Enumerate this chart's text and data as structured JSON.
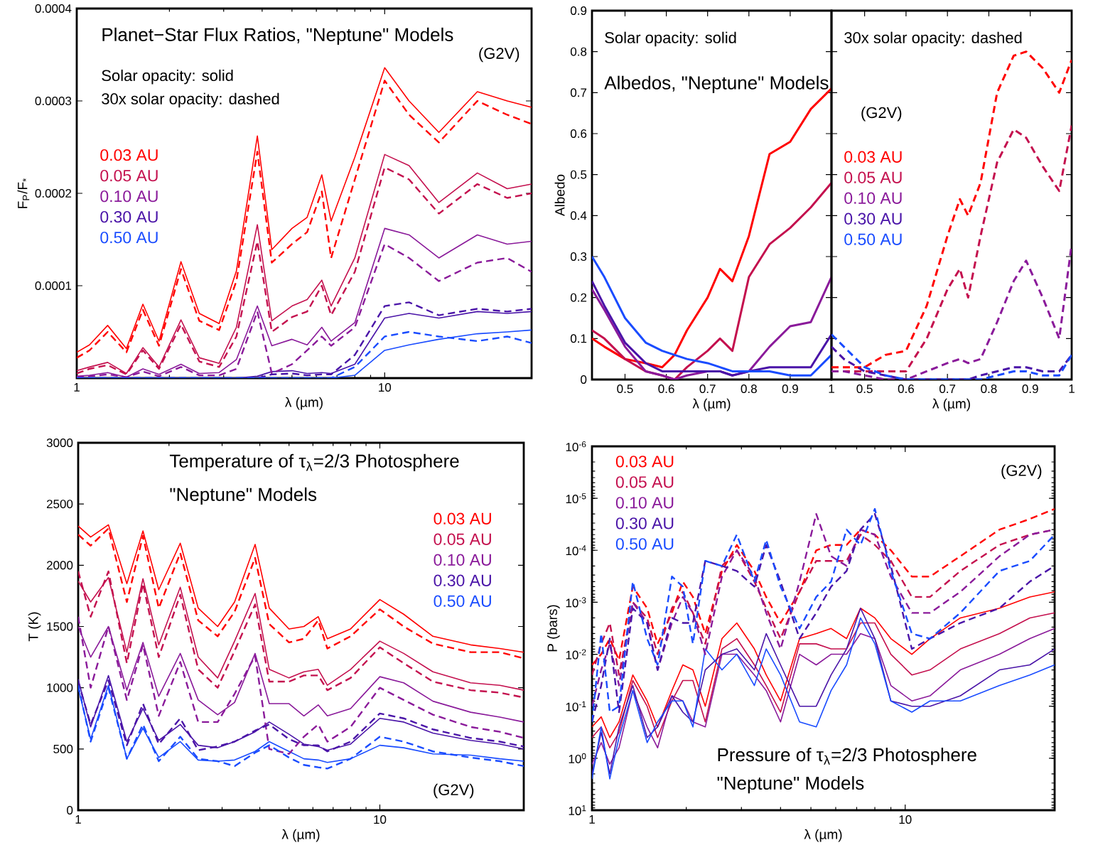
{
  "chart_data": [
    {
      "type": "line",
      "title": "Planet−Star Flux Ratios, \"Neptune\" Models",
      "xlabel": "λ (µm)",
      "ylabel": "F$_{P}$/F$_{*}$",
      "log": "x",
      "legend": "left",
      "annotations": [
        "Solar opacity: solid",
        "30x solar opacity: dashed",
        "(G2V)"
      ],
      "xlim": [
        1,
        30
      ],
      "xticks": [
        1,
        10
      ],
      "ylim": [
        0,
        0.0004
      ],
      "yticks": [
        {
          "value": 0,
          "label": null
        },
        0.0001,
        0.0002,
        0.0003,
        0.0004
      ],
      "x": [
        1,
        1.1,
        1.26,
        1.45,
        1.64,
        1.85,
        2.18,
        2.5,
        2.9,
        3.3,
        3.86,
        4.3,
        5,
        5.6,
        6.25,
        6.7,
        8,
        10,
        12,
        15,
        20,
        25,
        30
      ],
      "series": [
        {
          "name": "0.03 AU",
          "color": "#ff0000",
          "line_style": "solid",
          "values": [
            2.8e-05,
            3.6e-05,
            5.7e-05,
            3.2e-05,
            8e-05,
            4e-05,
            0.000126,
            7e-05,
            5.9e-05,
            0.000116,
            0.000262,
            0.000139,
            0.000162,
            0.000174,
            0.00022,
            0.00017,
            0.000239,
            0.000336,
            0.0003,
            0.000266,
            0.00031,
            0.0003,
            0.000293
          ]
        },
        {
          "name": "0.05 AU",
          "color": "#c4104e",
          "line_style": "solid",
          "values": [
            8e-06,
            1.2e-05,
            1.7e-05,
            5e-06,
            3.3e-05,
            1.2e-05,
            6.3e-05,
            2.2e-05,
            1.6e-05,
            5.5e-05,
            0.000166,
            6.2e-05,
            7.8e-05,
            8.5e-05,
            0.000106,
            7.8e-05,
            0.00013,
            0.000242,
            0.00023,
            0.00019,
            0.000222,
            0.000205,
            0.00021
          ]
        },
        {
          "name": "0.10 AU",
          "color": "#8a1a9a",
          "line_style": "solid",
          "values": [
            2e-06,
            3e-06,
            6e-06,
            1e-06,
            1e-05,
            4e-06,
            1.5e-05,
            5e-06,
            6e-06,
            2e-05,
            7.8e-05,
            3.5e-05,
            4.2e-05,
            3.6e-05,
            5.5e-05,
            4e-05,
            6e-05,
            0.000162,
            0.000155,
            0.00013,
            0.000155,
            0.000145,
            0.000148
          ]
        },
        {
          "name": "0.30 AU",
          "color": "#4a14a8",
          "line_style": "solid",
          "values": [
            0,
            0,
            0,
            0,
            0,
            0,
            0,
            0,
            0,
            0,
            2e-06,
            7e-06,
            8e-06,
            5e-06,
            6e-06,
            5e-06,
            1.5e-05,
            6.5e-05,
            7e-05,
            6.5e-05,
            7.2e-05,
            7e-05,
            7.2e-05
          ]
        },
        {
          "name": "0.50 AU",
          "color": "#1a4cff",
          "line_style": "solid",
          "values": [
            0,
            0,
            0,
            0,
            0,
            0,
            0,
            0,
            0,
            0,
            0,
            0,
            0,
            0,
            0,
            0,
            3e-06,
            3e-05,
            3.6e-05,
            4.2e-05,
            4.8e-05,
            5e-05,
            5.2e-05
          ]
        },
        {
          "color": "#ff0000",
          "line_style": "dashed",
          "values": [
            2.2e-05,
            3e-05,
            5e-05,
            2.8e-05,
            7.4e-05,
            3.5e-05,
            0.000118,
            6.2e-05,
            5.2e-05,
            0.000105,
            0.000245,
            0.000125,
            0.000145,
            0.000158,
            0.000202,
            0.00013,
            0.000215,
            0.000322,
            0.000285,
            0.000255,
            0.0003,
            0.000285,
            0.000275
          ]
        },
        {
          "color": "#c4104e",
          "line_style": "dashed",
          "values": [
            5e-06,
            1e-05,
            1.4e-05,
            4e-06,
            3e-05,
            1e-05,
            5.8e-05,
            1.8e-05,
            1.2e-05,
            4.5e-05,
            0.000148,
            5e-05,
            6.6e-05,
            7.2e-05,
            0.0001,
            6.8e-05,
            0.000115,
            0.000228,
            0.000215,
            0.000178,
            0.00021,
            0.000195,
            0.0002
          ]
        },
        {
          "color": "#8a1a9a",
          "line_style": "dashed",
          "values": [
            1e-06,
            2e-06,
            4e-06,
            1e-06,
            7e-06,
            2e-06,
            1.2e-05,
            3e-06,
            3e-06,
            1e-05,
            7.2e-05,
            5e-06,
            1.5e-05,
            3e-05,
            4.5e-05,
            3.5e-05,
            5.5e-05,
            0.000145,
            0.00013,
            0.000105,
            0.000125,
            0.00013,
            0.000115
          ]
        },
        {
          "color": "#4a14a8",
          "line_style": "dashed",
          "values": [
            0,
            0,
            0,
            0,
            0,
            0,
            0,
            0,
            0,
            0,
            0,
            4e-06,
            5e-06,
            3e-06,
            4e-06,
            4e-06,
            2.5e-05,
            7.8e-05,
            8.2e-05,
            6.8e-05,
            7.5e-05,
            7.2e-05,
            7.5e-05
          ]
        },
        {
          "color": "#1a4cff",
          "line_style": "dashed",
          "values": [
            0,
            0,
            0,
            0,
            0,
            0,
            0,
            0,
            0,
            0,
            0,
            0,
            0,
            0,
            0,
            0,
            1.2e-05,
            4.5e-05,
            5e-05,
            4.5e-05,
            4e-05,
            4.5e-05,
            3.8e-05
          ]
        }
      ]
    },
    {
      "type": "line",
      "title": "Albedos, \"Neptune\" Models",
      "xlabel": "λ (µm)",
      "ylabel": "Albedo",
      "annotations": [
        "Solar opacity: solid"
      ],
      "xlim": [
        0.42,
        1.0
      ],
      "xticks": [
        0.5,
        0.6,
        0.7,
        0.8,
        0.9,
        1
      ],
      "ylim": [
        0,
        0.9
      ],
      "yticks": [
        0,
        0.1,
        0.2,
        0.3,
        0.4,
        0.5,
        0.6,
        0.7,
        0.8,
        0.9
      ],
      "x": [
        0.42,
        0.45,
        0.5,
        0.55,
        0.59,
        0.62,
        0.65,
        0.7,
        0.73,
        0.76,
        0.8,
        0.85,
        0.9,
        0.95,
        1.0
      ],
      "series": [
        {
          "color": "#ff0000",
          "line_style": "solid",
          "values": [
            0.1,
            0.08,
            0.05,
            0.04,
            0.03,
            0.06,
            0.12,
            0.2,
            0.27,
            0.24,
            0.35,
            0.55,
            0.58,
            0.66,
            0.71
          ]
        },
        {
          "color": "#c4104e",
          "line_style": "solid",
          "values": [
            0.12,
            0.1,
            0.05,
            0.02,
            0.01,
            0.0,
            0.03,
            0.07,
            0.1,
            0.07,
            0.25,
            0.33,
            0.37,
            0.42,
            0.48
          ]
        },
        {
          "color": "#8a1a9a",
          "line_style": "solid",
          "values": [
            0.22,
            0.17,
            0.08,
            0.02,
            0.01,
            0.0,
            0.01,
            0.02,
            0.02,
            0.01,
            0.02,
            0.08,
            0.13,
            0.14,
            0.25
          ]
        },
        {
          "color": "#4a14a8",
          "line_style": "solid",
          "values": [
            0.24,
            0.18,
            0.09,
            0.04,
            0.02,
            0.02,
            0.02,
            0.02,
            0.02,
            0.01,
            0.02,
            0.03,
            0.03,
            0.03,
            0.11
          ]
        },
        {
          "color": "#1a4cff",
          "line_style": "solid",
          "values": [
            0.3,
            0.25,
            0.15,
            0.09,
            0.07,
            0.06,
            0.05,
            0.04,
            0.03,
            0.02,
            0.02,
            0.02,
            0.01,
            0.01,
            0.06
          ]
        }
      ]
    },
    {
      "type": "line",
      "xlabel": "λ (µm)",
      "legend": "left",
      "tick_labels": "x",
      "annotations": [
        "30x solar opacity: dashed",
        "(G2V)"
      ],
      "xlim": [
        0.42,
        1.0
      ],
      "xticks": [
        0.5,
        0.6,
        0.7,
        0.8,
        0.9,
        1
      ],
      "ylim": [
        0,
        0.9
      ],
      "yticks": [
        0,
        0.1,
        0.2,
        0.3,
        0.4,
        0.5,
        0.6,
        0.7,
        0.8,
        0.9
      ],
      "x": [
        0.42,
        0.45,
        0.5,
        0.55,
        0.6,
        0.65,
        0.7,
        0.73,
        0.75,
        0.78,
        0.82,
        0.86,
        0.89,
        0.93,
        0.97,
        1.0
      ],
      "series": [
        {
          "name": "0.03 AU",
          "color": "#ff0000",
          "line_style": "dashed",
          "values": [
            0.03,
            0.03,
            0.03,
            0.06,
            0.07,
            0.18,
            0.35,
            0.44,
            0.4,
            0.48,
            0.7,
            0.79,
            0.8,
            0.76,
            0.7,
            0.78
          ]
        },
        {
          "name": "0.05 AU",
          "color": "#c4104e",
          "line_style": "dashed",
          "values": [
            0.02,
            0.02,
            0.02,
            0.02,
            0.02,
            0.1,
            0.22,
            0.27,
            0.2,
            0.35,
            0.53,
            0.61,
            0.59,
            0.52,
            0.46,
            0.62
          ]
        },
        {
          "name": "0.10 AU",
          "color": "#8a1a9a",
          "line_style": "dashed",
          "values": [
            0.02,
            0.02,
            0.01,
            0.0,
            0.0,
            0.02,
            0.04,
            0.05,
            0.04,
            0.05,
            0.14,
            0.24,
            0.29,
            0.2,
            0.1,
            0.33
          ]
        },
        {
          "name": "0.30 AU",
          "color": "#4a14a8",
          "line_style": "dashed",
          "values": [
            0.08,
            0.05,
            0.02,
            0.01,
            0.0,
            0.0,
            0.0,
            0.0,
            0.0,
            0.01,
            0.02,
            0.03,
            0.03,
            0.02,
            0.02,
            0.06
          ]
        },
        {
          "name": "0.50 AU",
          "color": "#1a4cff",
          "line_style": "dashed",
          "values": [
            0.11,
            0.08,
            0.03,
            0.01,
            0.0,
            0.0,
            0.0,
            0.0,
            0.0,
            0.0,
            0.01,
            0.02,
            0.02,
            0.01,
            0.01,
            0.06
          ]
        }
      ]
    },
    {
      "type": "line",
      "title": "Temperature of τ$_{λ}$=2/3 Photosphere",
      "subtitle": "\"Neptune\" Models",
      "xlabel": "λ (µm)",
      "ylabel": "T (K)",
      "log": "x",
      "legend": "top right",
      "annotations": [
        "(G2V)"
      ],
      "xlim": [
        1,
        30
      ],
      "xticks": [
        1,
        10
      ],
      "ylim": [
        0,
        3000
      ],
      "yticks": [
        0,
        500,
        1000,
        1500,
        2000,
        2500,
        3000
      ],
      "x": [
        1,
        1.1,
        1.26,
        1.45,
        1.64,
        1.85,
        2.18,
        2.5,
        2.9,
        3.3,
        3.86,
        4.3,
        5,
        5.6,
        6.25,
        6.7,
        8,
        10,
        12,
        15,
        20,
        25,
        30
      ],
      "series": [
        {
          "name": "0.03 AU",
          "color": "#ff0000",
          "line_style": "solid",
          "values": [
            2320,
            2230,
            2330,
            1850,
            2280,
            1800,
            2180,
            1650,
            1500,
            1700,
            2170,
            1650,
            1480,
            1500,
            1580,
            1400,
            1480,
            1720,
            1600,
            1420,
            1350,
            1320,
            1290
          ]
        },
        {
          "name": "0.05 AU",
          "color": "#c4104e",
          "line_style": "solid",
          "values": [
            1870,
            1700,
            1900,
            1290,
            1890,
            1350,
            1820,
            1250,
            1080,
            1380,
            1770,
            1150,
            1080,
            1130,
            1150,
            1020,
            1150,
            1380,
            1280,
            1130,
            1040,
            1020,
            980
          ]
        },
        {
          "name": "0.10 AU",
          "color": "#8a1a9a",
          "line_style": "solid",
          "values": [
            1500,
            1250,
            1500,
            980,
            1370,
            930,
            1280,
            900,
            780,
            880,
            1280,
            870,
            870,
            770,
            860,
            770,
            830,
            1090,
            1040,
            890,
            800,
            760,
            720
          ]
        },
        {
          "name": "0.30 AU",
          "color": "#4a14a8",
          "line_style": "solid",
          "values": [
            1070,
            680,
            1100,
            560,
            830,
            570,
            700,
            530,
            510,
            560,
            640,
            720,
            620,
            540,
            520,
            490,
            540,
            750,
            720,
            630,
            570,
            540,
            500
          ]
        },
        {
          "name": "0.50 AU",
          "color": "#1a4cff",
          "line_style": "solid",
          "values": [
            1000,
            580,
            1020,
            420,
            670,
            430,
            560,
            410,
            400,
            410,
            480,
            560,
            480,
            420,
            410,
            390,
            420,
            530,
            510,
            460,
            450,
            420,
            400
          ]
        },
        {
          "color": "#ff0000",
          "line_style": "dashed",
          "values": [
            2250,
            2160,
            2300,
            1700,
            2240,
            1650,
            2100,
            1550,
            1420,
            1620,
            2060,
            1520,
            1370,
            1400,
            1550,
            1320,
            1420,
            1640,
            1500,
            1360,
            1290,
            1290,
            1240
          ]
        },
        {
          "color": "#c4104e",
          "line_style": "dashed",
          "values": [
            1950,
            1580,
            1950,
            1200,
            1850,
            1250,
            1760,
            1150,
            1000,
            1300,
            1680,
            1050,
            1050,
            1100,
            1100,
            980,
            1080,
            1330,
            1200,
            1050,
            980,
            960,
            920
          ]
        },
        {
          "color": "#8a1a9a",
          "line_style": "dashed",
          "values": [
            1580,
            1000,
            1500,
            900,
            1350,
            770,
            1210,
            720,
            720,
            950,
            1260,
            500,
            460,
            600,
            700,
            560,
            680,
            1000,
            900,
            780,
            680,
            640,
            590
          ]
        },
        {
          "color": "#4a14a8",
          "line_style": "dashed",
          "values": [
            1050,
            700,
            1060,
            530,
            870,
            540,
            750,
            490,
            520,
            560,
            650,
            700,
            580,
            530,
            530,
            480,
            560,
            790,
            750,
            660,
            590,
            560,
            520
          ]
        },
        {
          "color": "#1a4cff",
          "line_style": "dashed",
          "values": [
            1020,
            560,
            1000,
            420,
            700,
            400,
            600,
            420,
            400,
            360,
            470,
            530,
            430,
            370,
            350,
            340,
            420,
            600,
            560,
            480,
            430,
            400,
            360
          ]
        }
      ]
    },
    {
      "type": "line",
      "title": "Pressure of τ$_{λ}$=2/3 Photosphere",
      "subtitle": "\"Neptune\" Models",
      "xlabel": "λ (µm)",
      "ylabel": "P (bars)",
      "log": "xy",
      "legend": "top left",
      "annotations": [
        "(G2V)"
      ],
      "xlim": [
        1,
        30
      ],
      "xticks": [
        1,
        10
      ],
      "ylim": [
        10,
        1e-06
      ],
      "yticks": [
        {
          "value": 1e-06,
          "label": "10$^{-6}$"
        },
        {
          "value": 1e-05,
          "label": "10$^{-5}$"
        },
        {
          "value": 0.0001,
          "label": "10$^{-4}$"
        },
        {
          "value": 0.001,
          "label": "10$^{-3}$"
        },
        {
          "value": 0.01,
          "label": "10$^{-2}$"
        },
        {
          "value": 0.1,
          "label": "10$^{-1}$"
        },
        {
          "value": 1,
          "label": "10$^{0}$"
        },
        {
          "value": 10,
          "label": "10$^{1}$"
        }
      ],
      "x": [
        1,
        1.07,
        1.14,
        1.22,
        1.35,
        1.5,
        1.62,
        1.8,
        1.95,
        2.1,
        2.3,
        2.6,
        2.9,
        3.3,
        3.6,
        4.0,
        4.6,
        5.2,
        5.8,
        6.5,
        7.2,
        8,
        9,
        10.5,
        12,
        15,
        20,
        25,
        30
      ],
      "series": [
        {
          "name": "0.03 AU",
          "color": "#ff0000",
          "line_style": "solid",
          "values": [
            0.25,
            0.16,
            0.4,
            0.2,
            0.025,
            0.079,
            0.25,
            0.05,
            0.016,
            0.02,
            0.1,
            0.005,
            0.0025,
            0.0079,
            0.025,
            0.079,
            0.005,
            0.004,
            0.0032,
            0.005,
            0.0013,
            0.002,
            0.005,
            0.01,
            0.005,
            0.002,
            0.0013,
            0.00079,
            0.00063
          ]
        },
        {
          "name": "0.05 AU",
          "color": "#c4104e",
          "line_style": "solid",
          "values": [
            0.4,
            0.25,
            0.63,
            0.32,
            0.032,
            0.1,
            0.4,
            0.079,
            0.032,
            0.032,
            0.2,
            0.0079,
            0.005,
            0.016,
            0.04,
            0.13,
            0.0063,
            0.0063,
            0.0079,
            0.0079,
            0.0025,
            0.0025,
            0.01,
            0.025,
            0.02,
            0.0079,
            0.004,
            0.002,
            0.0016
          ]
        },
        {
          "name": "0.10 AU",
          "color": "#8a1a9a",
          "line_style": "solid",
          "values": [
            1.3,
            0.5,
            1.3,
            0.63,
            0.05,
            0.25,
            0.63,
            0.063,
            0.079,
            0.2,
            0.25,
            0.01,
            0.01,
            0.025,
            0.05,
            0.2,
            0.01,
            0.016,
            0.01,
            0.01,
            0.004,
            0.005,
            0.04,
            0.079,
            0.063,
            0.02,
            0.01,
            0.005,
            0.0032
          ]
        },
        {
          "name": "0.30 AU",
          "color": "#4a14a8",
          "line_style": "solid",
          "values": [
            2,
            0.32,
            2,
            0.25,
            0.04,
            0.4,
            0.25,
            0.063,
            0.13,
            0.2,
            0.02,
            0.01,
            0.0079,
            0.02,
            0.004,
            0.016,
            0.1,
            0.1,
            0.025,
            0.0079,
            0.0013,
            0.005,
            0.079,
            0.1,
            0.1,
            0.063,
            0.02,
            0.016,
            0.0079
          ]
        },
        {
          "name": "0.50 AU",
          "color": "#1a4cff",
          "line_style": "solid",
          "values": [
            2.5,
            0.25,
            2.5,
            0.4,
            0.05,
            0.5,
            0.2,
            0.079,
            0.079,
            0.25,
            0.0079,
            0.02,
            0.01,
            0.04,
            0.0079,
            0.025,
            0.2,
            0.25,
            0.05,
            0.016,
            0.002,
            0.0063,
            0.079,
            0.13,
            0.079,
            0.079,
            0.04,
            0.025,
            0.016
          ]
        },
        {
          "color": "#ff0000",
          "line_style": "dashed",
          "values": [
            0.016,
            0.01,
            0.005,
            0.013,
            0.0005,
            0.0013,
            0.0063,
            0.0016,
            0.0004,
            0.00079,
            0.004,
            0.00025,
            7.9e-05,
            0.00025,
            0.00079,
            0.0025,
            0.00063,
            0.0001,
            7.9e-05,
            7.9e-05,
            4e-05,
            5e-05,
            0.0001,
            0.00032,
            0.00032,
            0.00013,
            4e-05,
            2.5e-05,
            1.6e-05
          ]
        },
        {
          "color": "#c4104e",
          "line_style": "dashed",
          "values": [
            0.025,
            0.0063,
            0.0025,
            0.025,
            0.001,
            0.002,
            0.01,
            0.0013,
            0.00063,
            0.0016,
            0.0063,
            0.0002,
            0.0001,
            0.0004,
            0.0013,
            0.005,
            0.00063,
            0.00016,
            0.00016,
            0.00016,
            5e-05,
            7.9e-05,
            0.00016,
            0.00079,
            0.00079,
            0.00025,
            7.9e-05,
            5e-05,
            4e-05
          ]
        },
        {
          "color": "#8a1a9a",
          "line_style": "dashed",
          "values": [
            0.1,
            0.02,
            0.0063,
            0.04,
            0.001,
            0.0025,
            0.02,
            0.0025,
            0.00079,
            0.0016,
            0.01,
            0.00032,
            0.0001,
            0.00032,
            0.0016,
            0.0079,
            0.0004,
            2e-05,
            0.00013,
            0.0002,
            4e-05,
            5e-05,
            0.00032,
            0.0016,
            0.0016,
            0.00063,
            0.00013,
            5e-05,
            4e-05
          ]
        },
        {
          "color": "#4a14a8",
          "line_style": "dashed",
          "values": [
            0.2,
            0.04,
            0.005,
            0.13,
            0.0013,
            0.0025,
            0.02,
            0.002,
            0.0025,
            0.0025,
            0.00016,
            0.0002,
            0.00025,
            0.0005,
            7.9e-05,
            0.0004,
            0.005,
            0.0016,
            0.0005,
            0.00025,
            4e-05,
            2e-05,
            0.0002,
            0.0079,
            0.005,
            0.0025,
            0.0013,
            0.0004,
            0.0002
          ]
        },
        {
          "color": "#1a4cff",
          "line_style": "dashed",
          "values": [
            0.2,
            0.004,
            0.13,
            0.1,
            0.0004,
            0.005,
            0.016,
            0.00032,
            0.0005,
            0.0063,
            0.00016,
            0.0002,
            5e-05,
            0.0004,
            6.3e-05,
            0.0005,
            0.0032,
            0.00079,
            0.0004,
            4e-05,
            7.9e-05,
            1.6e-05,
            0.00025,
            0.004,
            0.005,
            0.0016,
            0.00025,
            0.00016,
            5e-05
          ]
        }
      ]
    }
  ]
}
